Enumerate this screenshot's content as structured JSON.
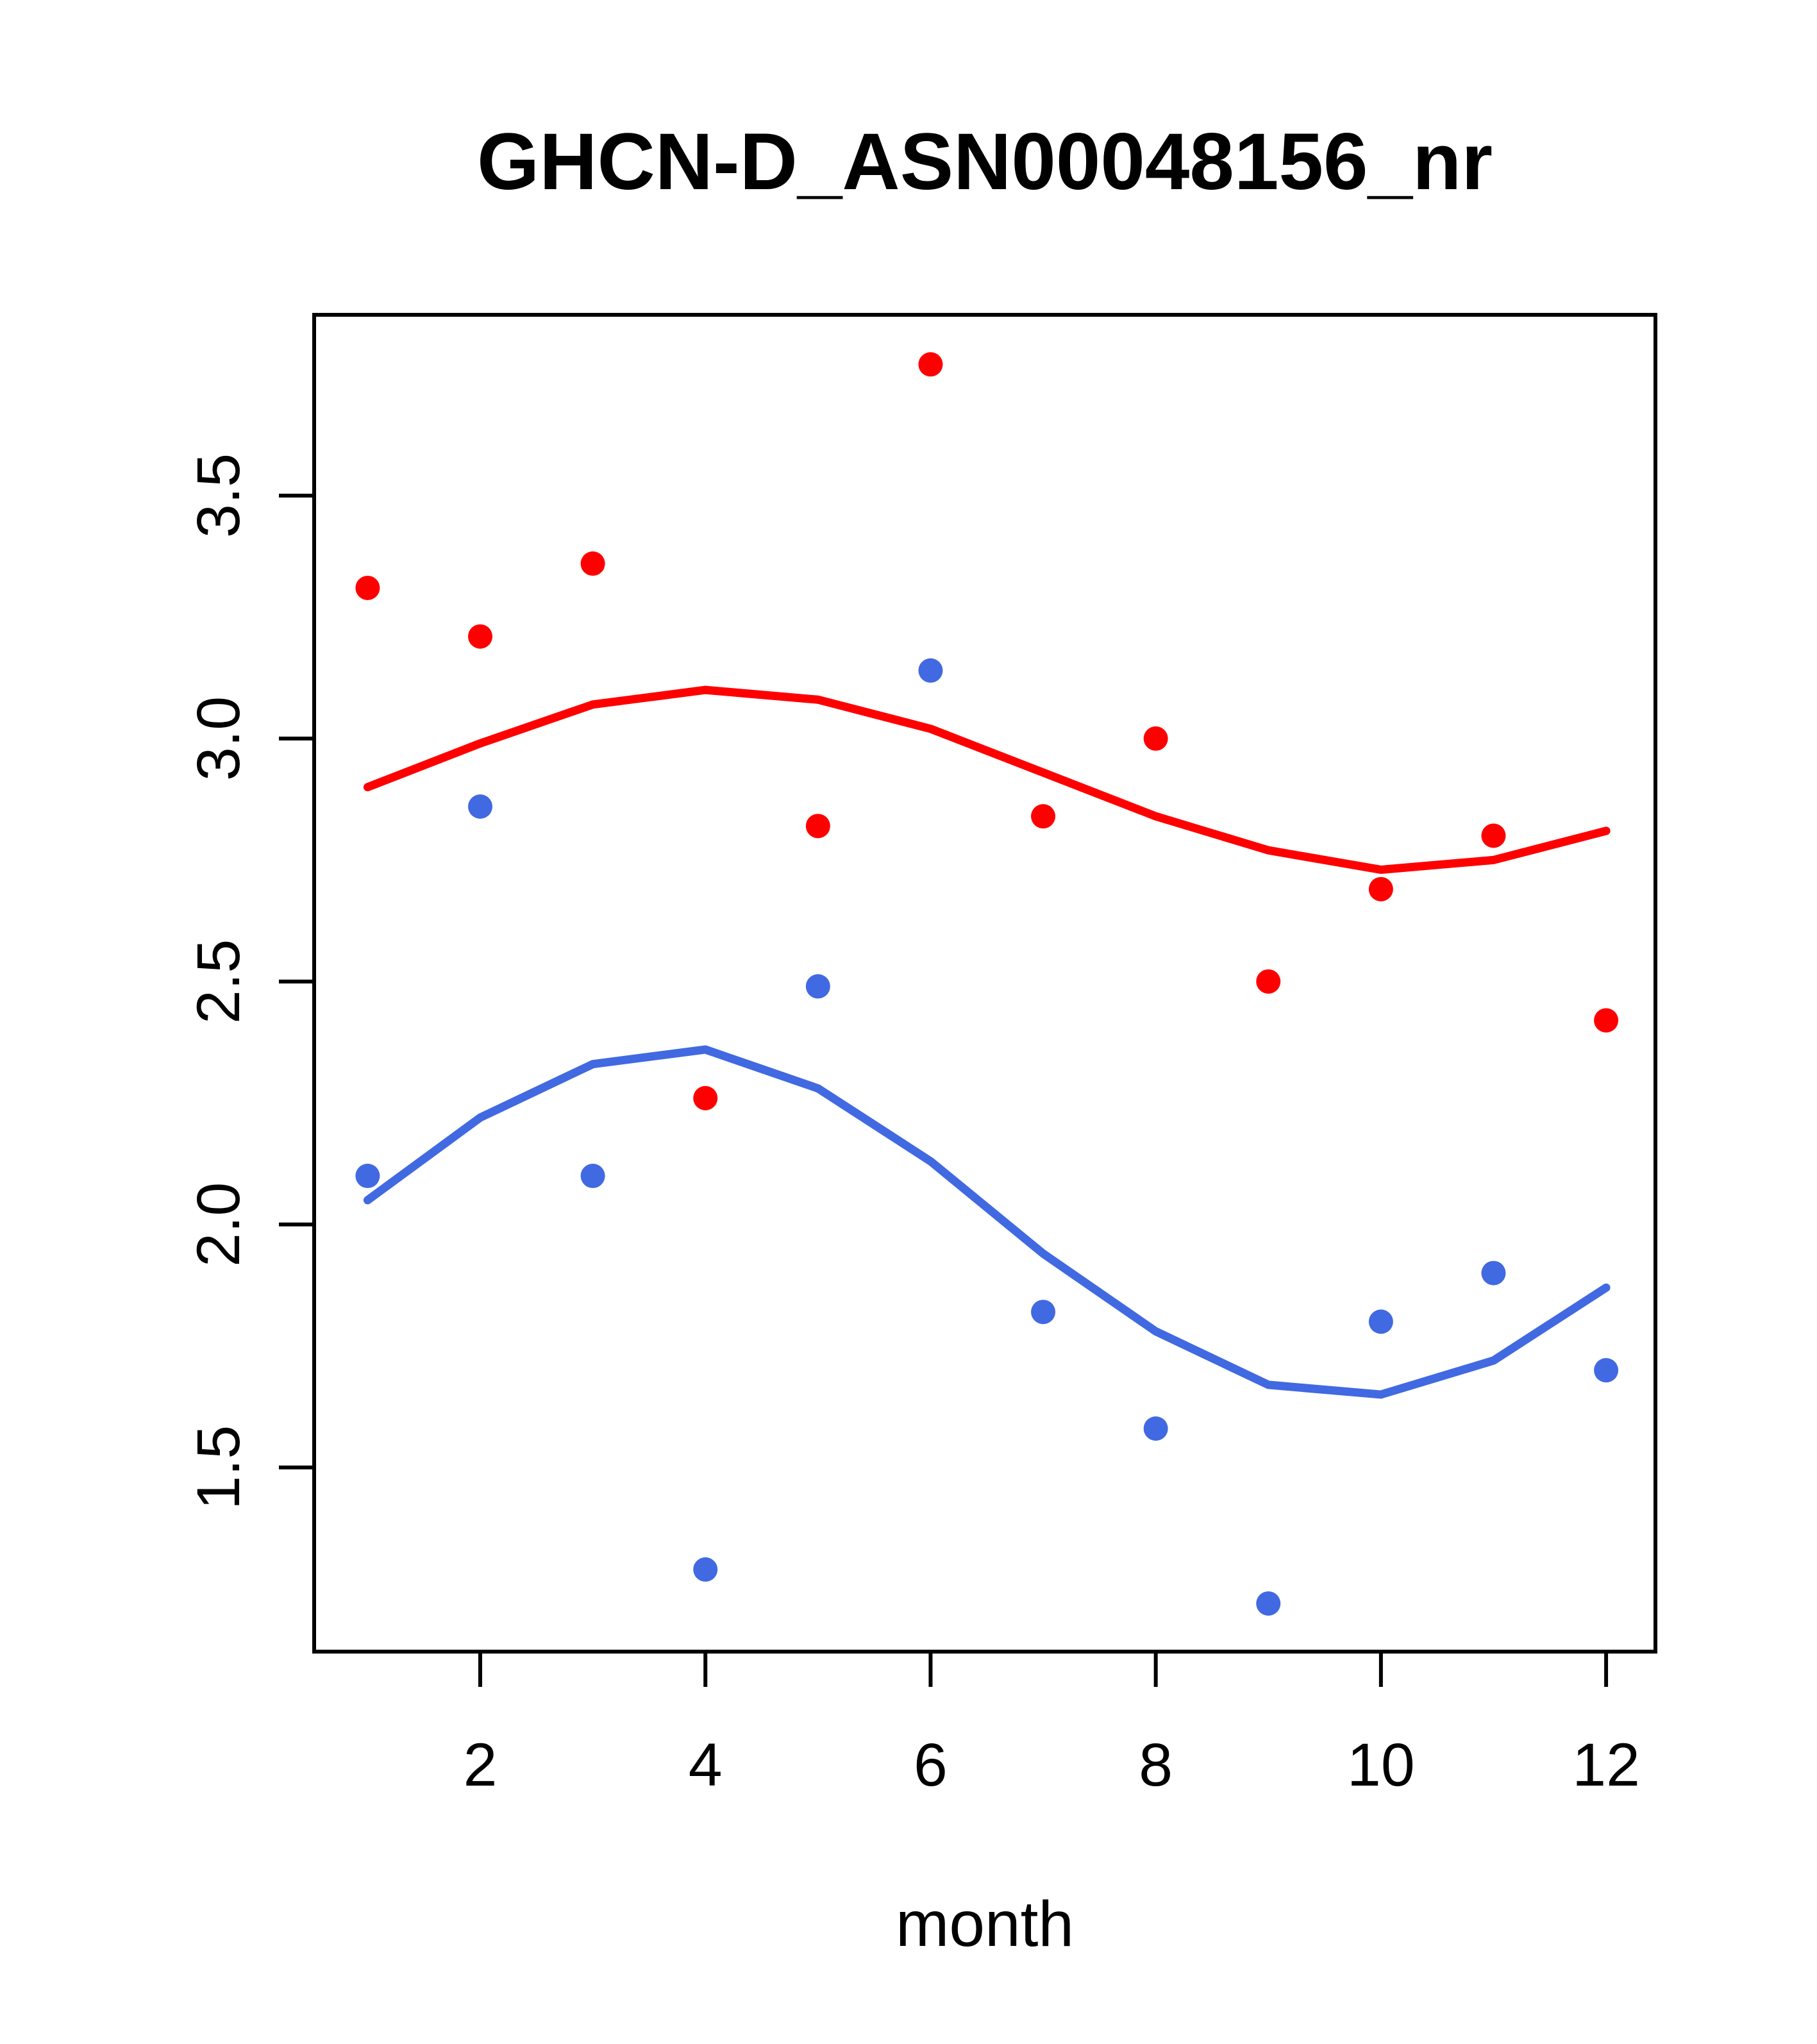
{
  "chart_data": {
    "type": "scatter",
    "title": "GHCN-D_ASN00048156_nr",
    "xlabel": "month",
    "ylabel": "",
    "x": [
      1,
      2,
      3,
      4,
      5,
      6,
      7,
      8,
      9,
      10,
      11,
      12
    ],
    "xlim": [
      0.525,
      12.438
    ],
    "ylim": [
      1.121,
      3.872
    ],
    "x_ticks": [
      {
        "value": 2,
        "label": "2"
      },
      {
        "value": 4,
        "label": "4"
      },
      {
        "value": 6,
        "label": "6"
      },
      {
        "value": 8,
        "label": "8"
      },
      {
        "value": 10,
        "label": "10"
      },
      {
        "value": 12,
        "label": "12"
      }
    ],
    "y_ticks": [
      {
        "value": 1.5,
        "label": "1.5"
      },
      {
        "value": 2.0,
        "label": "2.0"
      },
      {
        "value": 2.5,
        "label": "2.5"
      },
      {
        "value": 3.0,
        "label": "3.0"
      },
      {
        "value": 3.5,
        "label": "3.5"
      }
    ],
    "grid": false,
    "legend": null,
    "series": [
      {
        "name": "red-points",
        "type": "points",
        "color": "#FF0000",
        "values": [
          3.31,
          3.21,
          3.36,
          2.26,
          2.82,
          3.77,
          2.84,
          3.0,
          2.5,
          2.69,
          2.8,
          2.42
        ]
      },
      {
        "name": "blue-points",
        "type": "points",
        "color": "#4169E1",
        "values": [
          2.1,
          2.86,
          2.1,
          1.29,
          2.49,
          3.14,
          1.82,
          1.58,
          1.22,
          1.8,
          1.9,
          1.7
        ]
      },
      {
        "name": "red-smooth-line",
        "type": "line",
        "color": "#FF0000",
        "values": [
          2.9,
          2.99,
          3.07,
          3.1,
          3.08,
          3.02,
          2.93,
          2.84,
          2.77,
          2.73,
          2.75,
          2.81
        ]
      },
      {
        "name": "blue-smooth-line",
        "type": "line",
        "color": "#4169E1",
        "values": [
          2.05,
          2.22,
          2.33,
          2.36,
          2.28,
          2.13,
          1.94,
          1.78,
          1.67,
          1.65,
          1.72,
          1.87
        ]
      }
    ],
    "style": {
      "axis_color": "#000000",
      "background": "#FFFFFF",
      "point_radius": 19,
      "line_width": 13,
      "box_stroke": 6,
      "tick_length": 55
    }
  }
}
